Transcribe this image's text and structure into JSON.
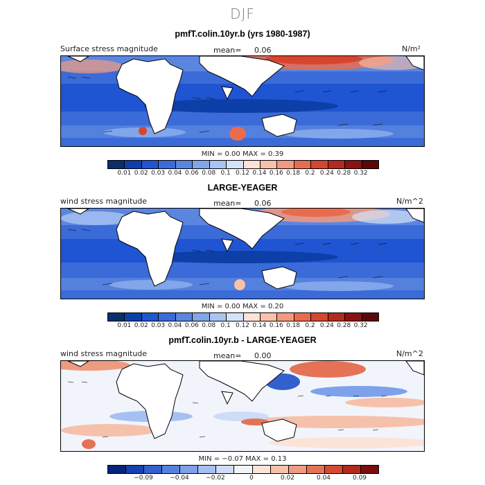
{
  "figure": {
    "title": "DJF"
  },
  "panels": [
    {
      "title": "pmfT.colin.10yr.b (yrs 1980-1987)",
      "left_label": "Surface stress magnitude",
      "mean_label": "mean=",
      "mean_value": "0.06",
      "units": "N/m²",
      "minmax": "MIN =   0.00  MAX =   0.39",
      "colorbar_ticks": [
        "0.01",
        "0.02",
        "0.03",
        "0.04",
        "0.06",
        "0.08",
        "0.1",
        "0.12",
        "0.14",
        "0.16",
        "0.18",
        "0.2",
        "0.24",
        "0.28",
        "0.32"
      ]
    },
    {
      "title": "LARGE-YEAGER",
      "left_label": "wind stress magnitude",
      "mean_label": "mean=",
      "mean_value": "0.06",
      "units": "N/m^2",
      "minmax": "MIN =   0.00  MAX =   0.20",
      "colorbar_ticks": [
        "0.01",
        "0.02",
        "0.03",
        "0.04",
        "0.06",
        "0.08",
        "0.1",
        "0.12",
        "0.14",
        "0.16",
        "0.18",
        "0.2",
        "0.24",
        "0.28",
        "0.32"
      ]
    },
    {
      "title": "pmfT.colin.10yr.b - LARGE-YEAGER",
      "left_label": "wind stress magnitude",
      "mean_label": "mean=",
      "mean_value": "0.00",
      "units": "N/m^2",
      "minmax": "MIN =  −0.07  MAX =   0.13",
      "colorbar_ticks": [
        "−0.09",
        "−0.04",
        "−0.02",
        "0",
        "0.02",
        "0.04",
        "0.09"
      ]
    }
  ],
  "colors": {
    "scale_abs": [
      "#08306b",
      "#0d3fa8",
      "#1f55d2",
      "#3a6bd8",
      "#5b86e0",
      "#82a6ea",
      "#aac4f2",
      "#d4e2f8",
      "#fde3d6",
      "#f8c1a8",
      "#f39a7e",
      "#ea6c4f",
      "#d6462f",
      "#b52a1e",
      "#8a1212",
      "#5c0808"
    ],
    "scale_diff": [
      "#08247a",
      "#1740b0",
      "#3260cf",
      "#5582de",
      "#7da2ea",
      "#a6c0f2",
      "#cedcf8",
      "#f2f4fc",
      "#fbe3d8",
      "#f6c1ab",
      "#ef9b80",
      "#e57256",
      "#d44a30",
      "#b32a1a",
      "#7a0e0a"
    ]
  }
}
